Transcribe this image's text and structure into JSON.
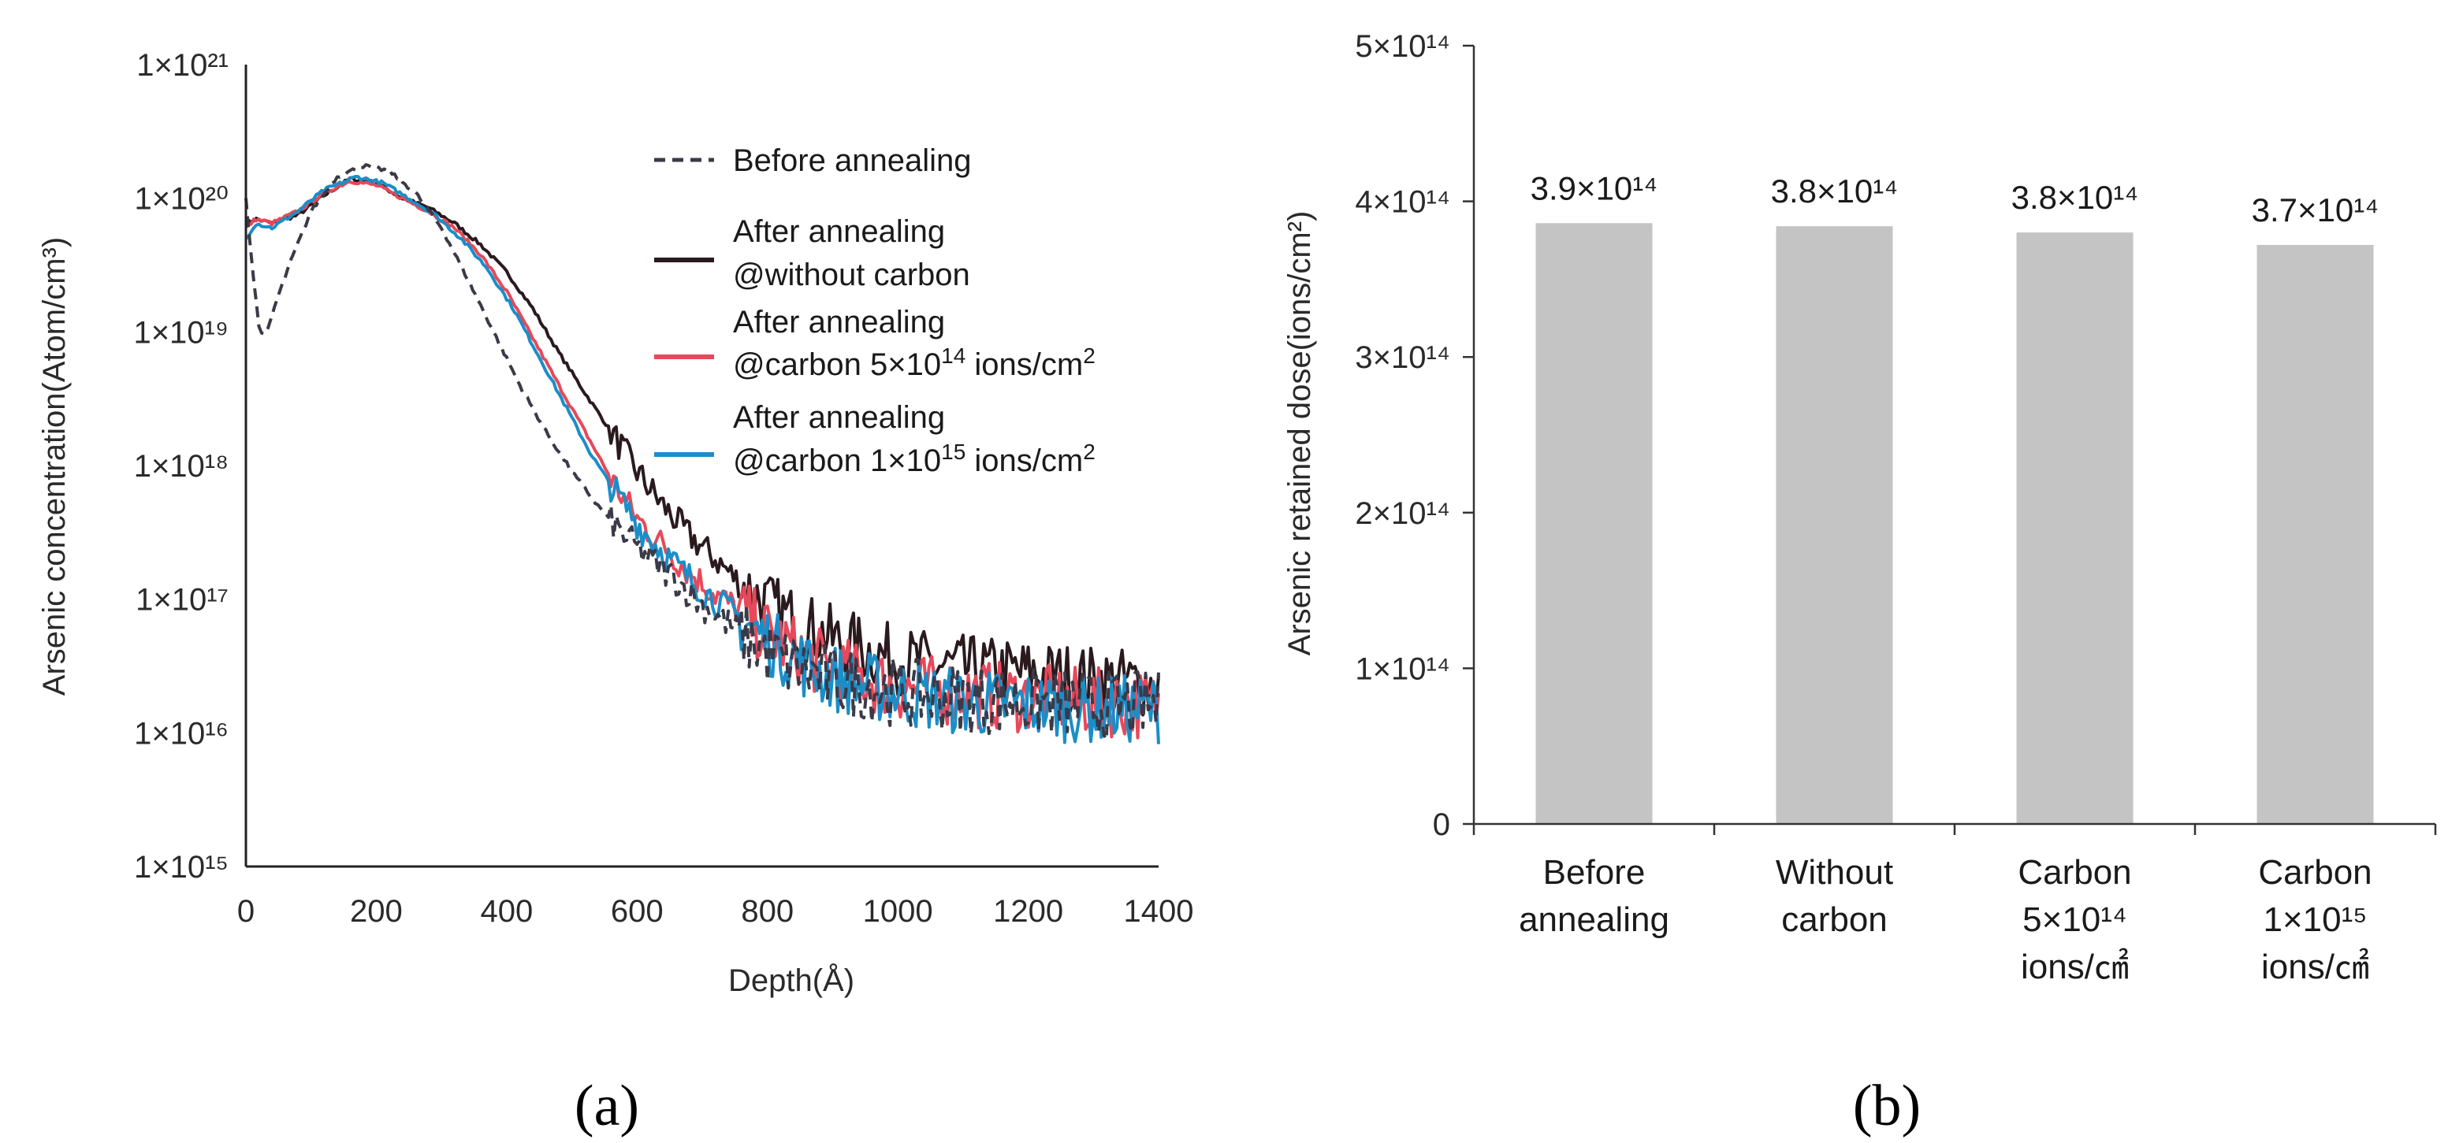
{
  "figure": {
    "panel_a_label": "(a)",
    "panel_b_label": "(b)"
  },
  "chart_data": [
    {
      "type": "line",
      "panel": "(a)",
      "xlabel": "Depth(Å)",
      "ylabel": "Arsenic concentration(Atom/cm³)",
      "yscale": "log",
      "xlim": [
        0,
        1400
      ],
      "ylim": [
        1000000000000000.0,
        1e+21
      ],
      "xticks": [
        "0",
        "200",
        "400",
        "600",
        "800",
        "1000",
        "1200",
        "1400"
      ],
      "yticks": [
        "1×10²¹",
        "1×10²⁰",
        "1×10¹⁹",
        "1×10¹⁸",
        "1×10¹⁷",
        "1×10¹⁶",
        "1×10¹⁵"
      ],
      "legend_position": "top-right",
      "series": [
        {
          "name": "Before annealing",
          "color": "#3a3a48",
          "style": "dashed",
          "points": [
            [
              0,
              1e+20
            ],
            [
              10,
              3e+19
            ],
            [
              20,
              1.1e+19
            ],
            [
              30,
              9e+18
            ],
            [
              45,
              1.6e+19
            ],
            [
              70,
              3.5e+19
            ],
            [
              100,
              8e+19
            ],
            [
              140,
              1.45e+20
            ],
            [
              180,
              1.75e+20
            ],
            [
              220,
              1.6e+20
            ],
            [
              260,
              1.1e+20
            ],
            [
              300,
              6e+19
            ],
            [
              340,
              2.5e+19
            ],
            [
              380,
              1e+19
            ],
            [
              420,
              4e+18
            ],
            [
              460,
              1.8e+18
            ],
            [
              500,
              9e+17
            ],
            [
              540,
              5e+17
            ],
            [
              580,
              3e+17
            ],
            [
              620,
              2e+17
            ],
            [
              660,
              1.4e+17
            ],
            [
              700,
              9e+16
            ],
            [
              750,
              6e+16
            ],
            [
              800,
              4e+16
            ],
            [
              850,
              3e+16
            ],
            [
              900,
              2.5e+16
            ],
            [
              1000,
              2e+16
            ],
            [
              1100,
              1.8e+16
            ],
            [
              1200,
              1.7e+16
            ],
            [
              1300,
              1.6e+16
            ],
            [
              1400,
              1.6e+16
            ]
          ]
        },
        {
          "name": "After annealing @without carbon",
          "color": "#2a1a1e",
          "style": "solid",
          "points": [
            [
              0,
              6.5e+19
            ],
            [
              15,
              7e+19
            ],
            [
              40,
              6.5e+19
            ],
            [
              80,
              7.5e+19
            ],
            [
              120,
              1.05e+20
            ],
            [
              160,
              1.4e+20
            ],
            [
              200,
              1.3e+20
            ],
            [
              240,
              1e+20
            ],
            [
              280,
              8.5e+19
            ],
            [
              320,
              6.5e+19
            ],
            [
              360,
              4.5e+19
            ],
            [
              400,
              2.8e+19
            ],
            [
              440,
              1.5e+19
            ],
            [
              480,
              7e+18
            ],
            [
              520,
              3.5e+18
            ],
            [
              560,
              1.8e+18
            ],
            [
              600,
              9e+17
            ],
            [
              640,
              5e+17
            ],
            [
              680,
              3e+17
            ],
            [
              720,
              2e+17
            ],
            [
              760,
              1.3e+17
            ],
            [
              800,
              9e+16
            ],
            [
              850,
              6.5e+16
            ],
            [
              900,
              5e+16
            ],
            [
              1000,
              3.5e+16
            ],
            [
              1100,
              3e+16
            ],
            [
              1200,
              2.8e+16
            ],
            [
              1300,
              2.5e+16
            ],
            [
              1400,
              2.3e+16
            ]
          ]
        },
        {
          "name": "After annealing @carbon 5×10¹⁴ ions/cm²",
          "color": "#e8485a",
          "style": "solid",
          "points": [
            [
              0,
              6e+19
            ],
            [
              15,
              7e+19
            ],
            [
              40,
              6.5e+19
            ],
            [
              80,
              8e+19
            ],
            [
              120,
              1.1e+20
            ],
            [
              160,
              1.35e+20
            ],
            [
              200,
              1.25e+20
            ],
            [
              240,
              1e+20
            ],
            [
              280,
              8e+19
            ],
            [
              320,
              6e+19
            ],
            [
              360,
              3.8e+19
            ],
            [
              400,
              2e+19
            ],
            [
              440,
              9e+18
            ],
            [
              480,
              4e+18
            ],
            [
              520,
              1.8e+18
            ],
            [
              560,
              8e+17
            ],
            [
              600,
              4e+17
            ],
            [
              640,
              2.5e+17
            ],
            [
              680,
              1.6e+17
            ],
            [
              720,
              1.1e+17
            ],
            [
              760,
              8e+16
            ],
            [
              800,
              5.5e+16
            ],
            [
              850,
              4e+16
            ],
            [
              900,
              3e+16
            ],
            [
              1000,
              2.2e+16
            ],
            [
              1100,
              2e+16
            ],
            [
              1200,
              1.8e+16
            ],
            [
              1300,
              1.7e+16
            ],
            [
              1400,
              1.6e+16
            ]
          ]
        },
        {
          "name": "After annealing @carbon 1×10¹⁵ ions/cm²",
          "color": "#1a8ec8",
          "style": "solid",
          "points": [
            [
              0,
              5e+19
            ],
            [
              15,
              6.5e+19
            ],
            [
              40,
              6e+19
            ],
            [
              80,
              8e+19
            ],
            [
              120,
              1.15e+20
            ],
            [
              170,
              1.45e+20
            ],
            [
              210,
              1.3e+20
            ],
            [
              250,
              1e+20
            ],
            [
              290,
              7.5e+19
            ],
            [
              330,
              5e+19
            ],
            [
              370,
              3e+19
            ],
            [
              410,
              1.5e+19
            ],
            [
              450,
              6.5e+18
            ],
            [
              490,
              2.8e+18
            ],
            [
              530,
              1.2e+18
            ],
            [
              570,
              6e+17
            ],
            [
              610,
              3.2e+17
            ],
            [
              650,
              2e+17
            ],
            [
              690,
              1.3e+17
            ],
            [
              730,
              9e+16
            ],
            [
              770,
              6.5e+16
            ],
            [
              810,
              4.5e+16
            ],
            [
              860,
              3.2e+16
            ],
            [
              900,
              2.6e+16
            ],
            [
              1000,
              2e+16
            ],
            [
              1100,
              1.7e+16
            ],
            [
              1200,
              1.6e+16
            ],
            [
              1300,
              1.5e+16
            ],
            [
              1400,
              1.5e+16
            ]
          ]
        }
      ]
    },
    {
      "type": "bar",
      "panel": "(b)",
      "ylabel": "Arsenic retained dose(ions/cm²)",
      "ylim": [
        0,
        500000000000000.0
      ],
      "yticks": [
        "0",
        "1×10¹⁴",
        "2×10¹⁴",
        "3×10¹⁴",
        "4×10¹⁴",
        "5×10¹⁴"
      ],
      "bar_color": "#c4c4c4",
      "categories": [
        [
          "Before",
          "annealing"
        ],
        [
          "Without",
          "carbon"
        ],
        [
          "Carbon",
          "5×10¹⁴",
          "ions/㎠"
        ],
        [
          "Carbon",
          "1×10¹⁵",
          "ions/㎠"
        ]
      ],
      "values": [
        386000000000000.0,
        384000000000000.0,
        380000000000000.0,
        372000000000000.0
      ],
      "value_labels": [
        "3.9×10¹⁴",
        "3.8×10¹⁴",
        "3.8×10¹⁴",
        "3.7×10¹⁴"
      ]
    }
  ]
}
